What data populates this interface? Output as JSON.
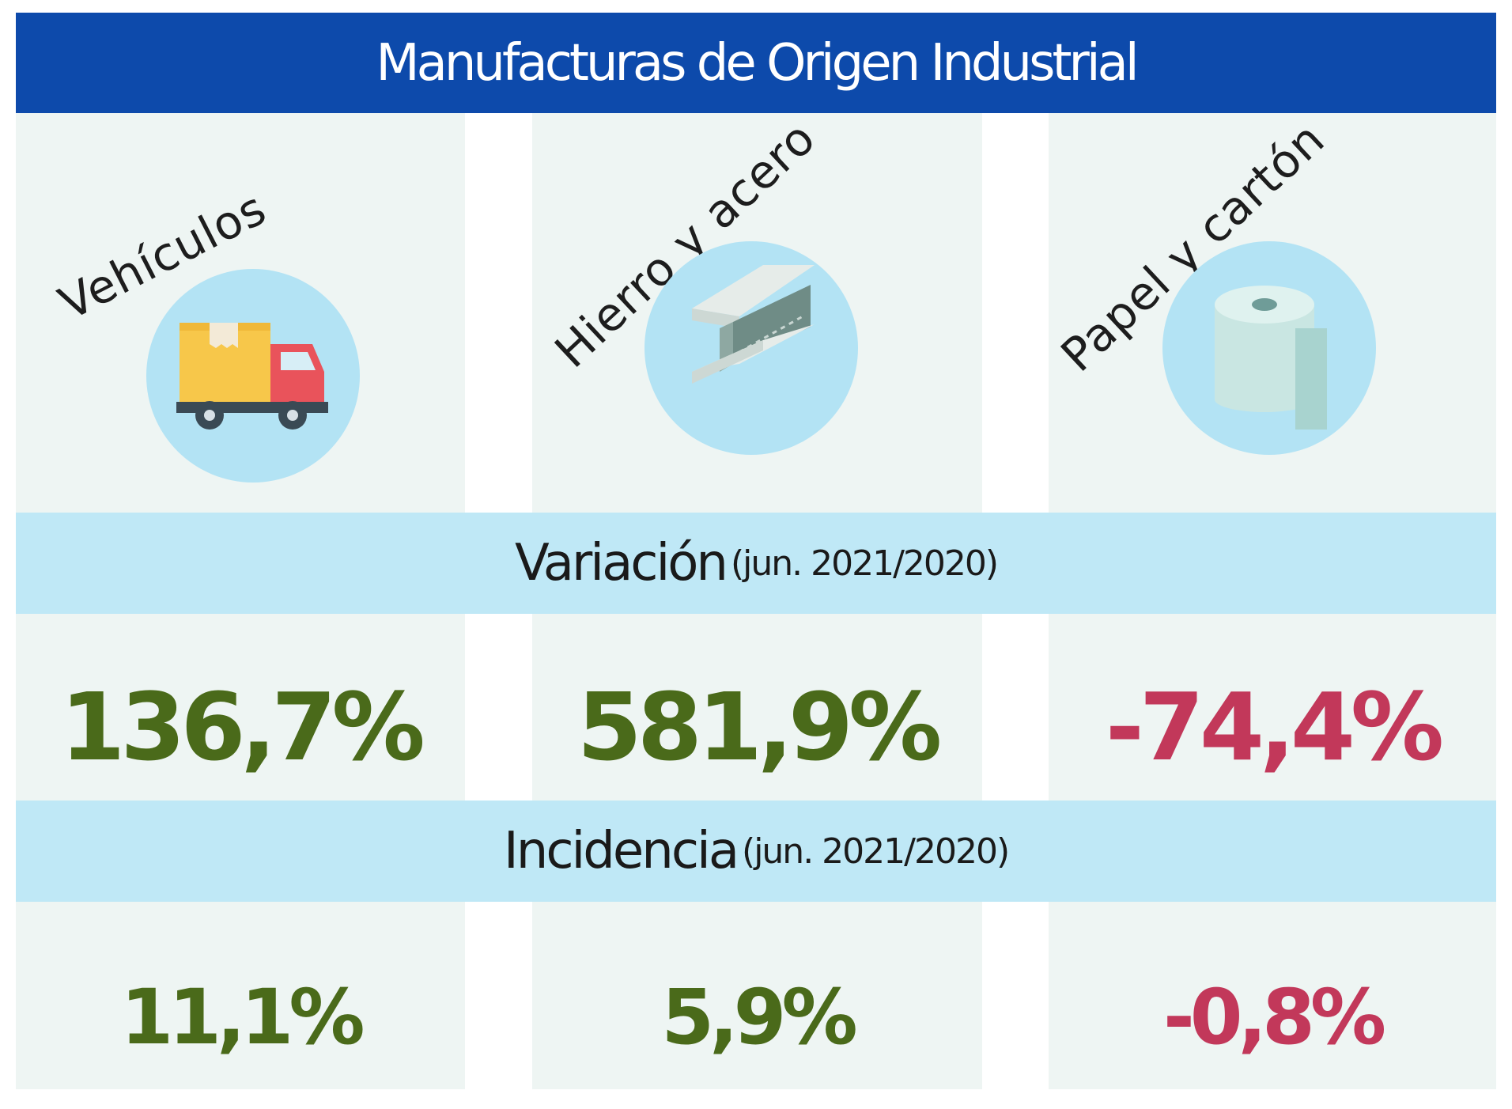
{
  "title": "Manufacturas de Origen Industrial",
  "categories": [
    {
      "label": "Vehículos",
      "icon": "truck-icon"
    },
    {
      "label": "Hierro y acero",
      "icon": "steel-beam-icon"
    },
    {
      "label": "Papel y cartón",
      "icon": "paper-roll-icon"
    }
  ],
  "variacion": {
    "label": "Variación",
    "period": "(jun. 2021/2020)",
    "values": [
      "136,7%",
      "581,9%",
      "-74,4%"
    ]
  },
  "incidencia": {
    "label": "Incidencia",
    "period": "(jun. 2021/2020)",
    "values": [
      "11,1%",
      "5,9%",
      "-0,8%"
    ]
  },
  "colors": {
    "title_band": "#0d4aab",
    "section_band": "#bfe8f6",
    "column_bg": "#eef5f3",
    "icon_circle": "#b3e3f4",
    "positive": "#4a6a1a",
    "negative": "#c2385a"
  }
}
